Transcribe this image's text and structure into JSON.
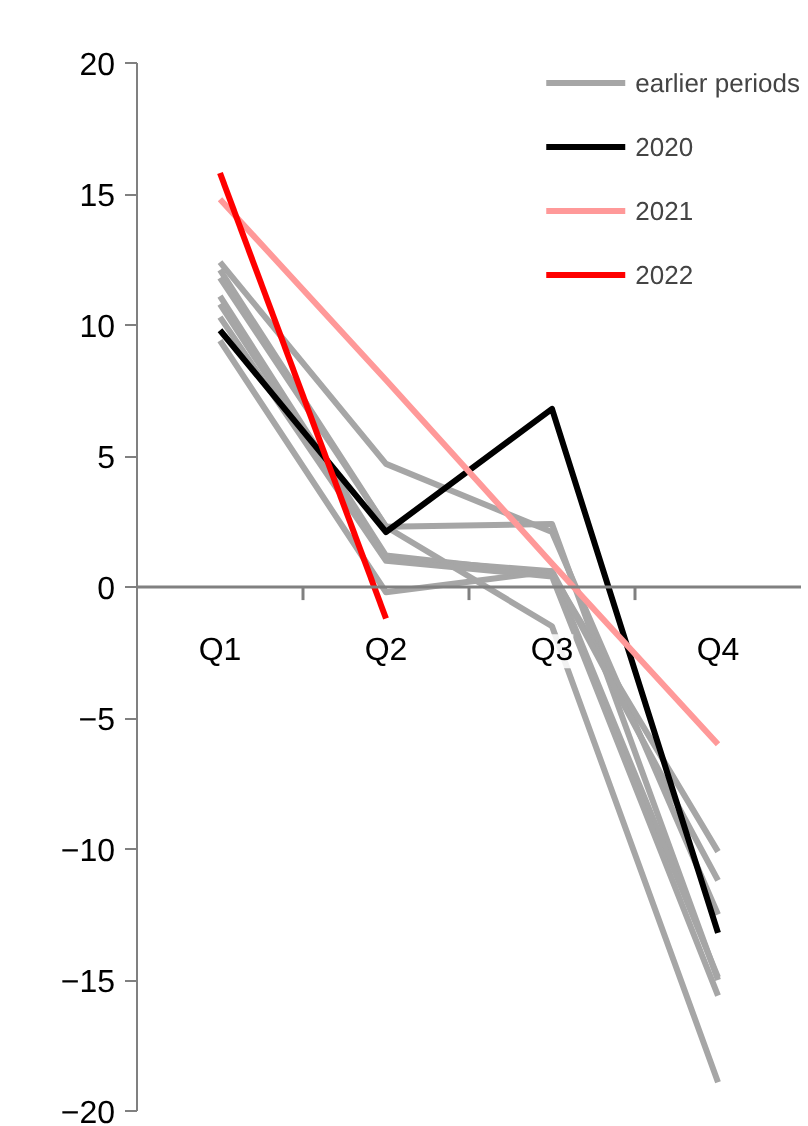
{
  "chart_data": {
    "type": "line",
    "categories": [
      "Q1",
      "Q2",
      "Q3",
      "Q4"
    ],
    "series": [
      {
        "name": "earlier periods",
        "color": "#a6a6a6",
        "values": [
          12.4,
          4.7,
          2.1,
          -12.5
        ]
      },
      {
        "color": "#a6a6a6",
        "values": [
          12.1,
          2.3,
          2.4,
          -15.0
        ]
      },
      {
        "color": "#a6a6a6",
        "values": [
          11.1,
          1.2,
          0.5,
          -10.1
        ]
      },
      {
        "color": "#a6a6a6",
        "values": [
          10.8,
          1.1,
          0.6,
          -14.9
        ]
      },
      {
        "color": "#a6a6a6",
        "values": [
          9.4,
          -0.2,
          0.6,
          -11.2
        ]
      },
      {
        "color": "#a6a6a6",
        "values": [
          11.8,
          2.3,
          -1.5,
          -18.9
        ]
      },
      {
        "color": "#a6a6a6",
        "values": [
          10.3,
          1.0,
          0.4,
          -15.6
        ]
      },
      {
        "name": "2020",
        "color": "#000000",
        "values": [
          9.8,
          2.1,
          6.8,
          -13.2
        ]
      },
      {
        "name": "2021",
        "color": "#ff9999",
        "values": [
          14.8,
          7.9,
          0.9,
          -6.0
        ]
      },
      {
        "name": "2022",
        "color": "#ff0000",
        "values": [
          15.8,
          -1.2,
          null,
          null
        ]
      }
    ],
    "ylim": [
      -20,
      20
    ],
    "yticks": [
      -20,
      -15,
      -10,
      -5,
      0,
      5,
      10,
      15,
      20
    ],
    "grid": false,
    "legend": "top right",
    "marker": "none",
    "line_style": "solid"
  }
}
